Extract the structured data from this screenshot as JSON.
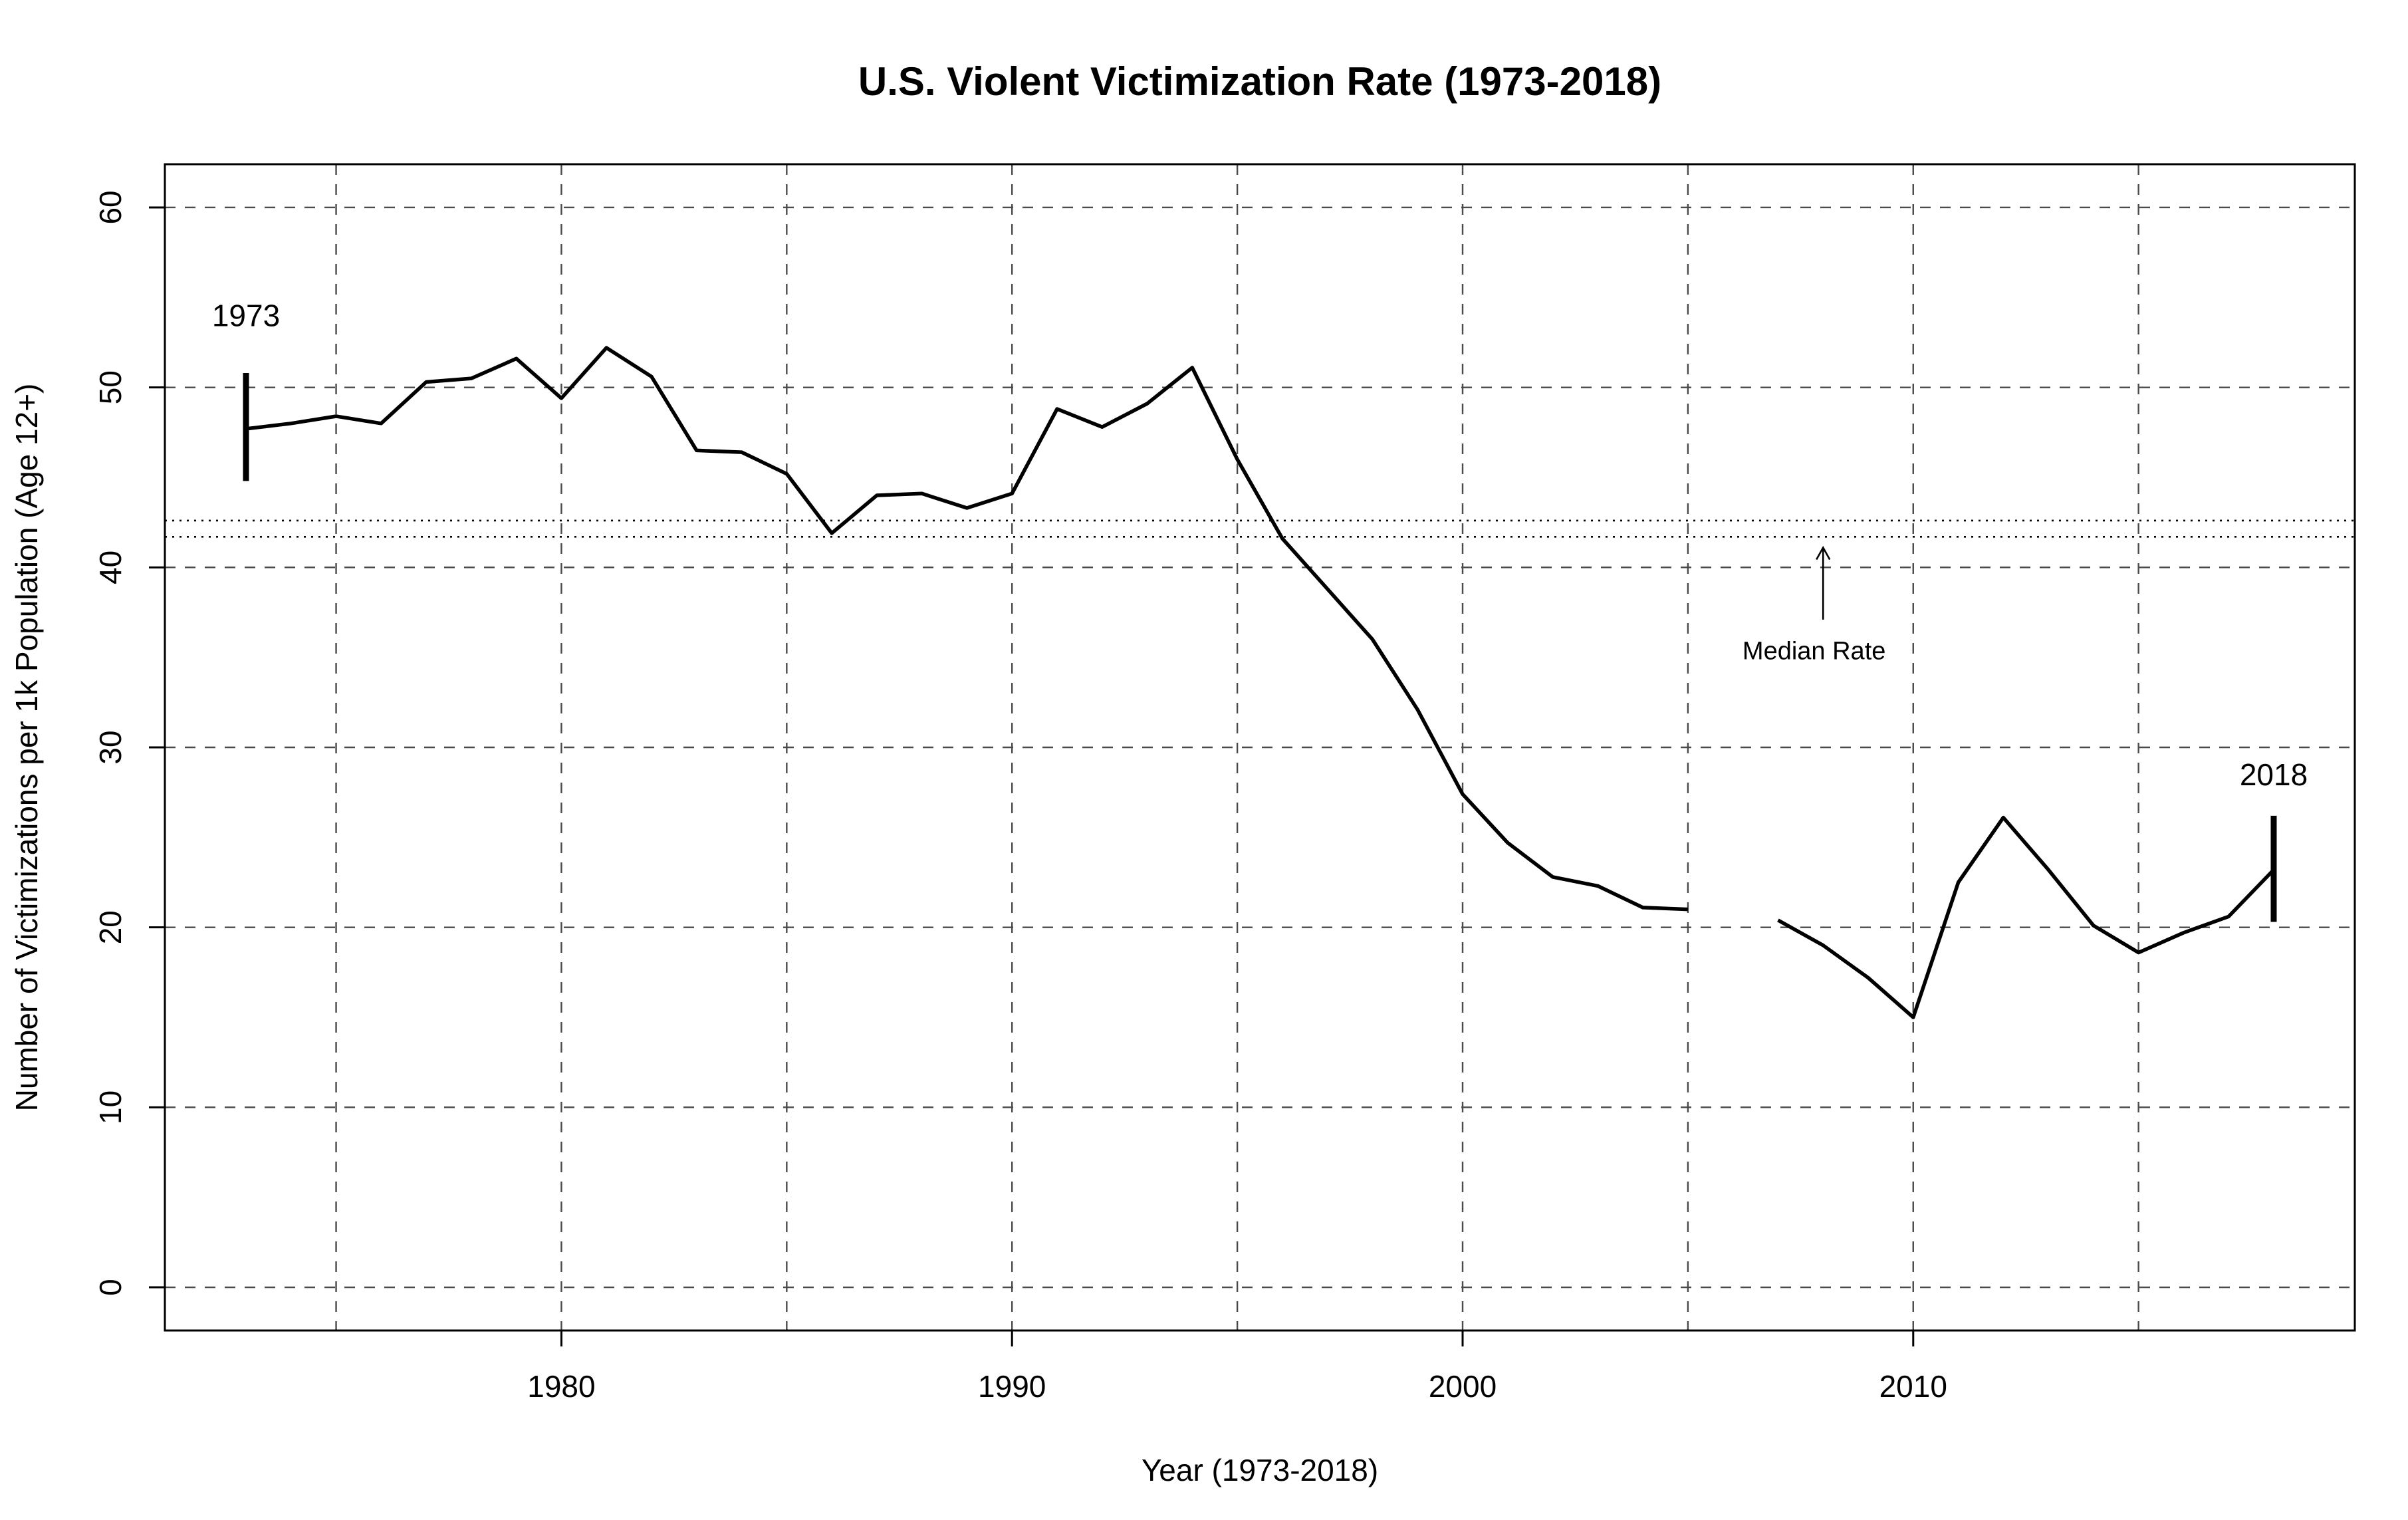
{
  "chart_data": {
    "type": "line",
    "title": "U.S. Violent Victimization Rate (1973-2018)",
    "xlabel": "Year (1973-2018)",
    "ylabel": "Number of Victimizations per 1k Population (Age 12+)",
    "xlim": [
      1971.2,
      2019.8
    ],
    "ylim": [
      -2.4,
      62.4
    ],
    "x_ticks": [
      1980,
      1990,
      2000,
      2010
    ],
    "x_tick_labels": [
      "1980",
      "1990",
      "2000",
      "2010"
    ],
    "y_ticks": [
      0,
      10,
      20,
      30,
      40,
      50,
      60
    ],
    "y_tick_labels": [
      "0",
      "10",
      "20",
      "30",
      "40",
      "50",
      "60"
    ],
    "grid": true,
    "grid_x": [
      1975,
      1980,
      1985,
      1990,
      1995,
      2000,
      2005,
      2010,
      2015
    ],
    "grid_y": [
      0,
      10,
      20,
      30,
      40,
      50,
      60
    ],
    "series": [
      {
        "x": [
          1973,
          1974,
          1975,
          1976,
          1977,
          1978,
          1979,
          1980,
          1981,
          1982,
          1983,
          1984,
          1985,
          1986,
          1987,
          1988,
          1989,
          1990,
          1991,
          1992,
          1993,
          1994,
          1995,
          1996,
          1997,
          1998,
          1999,
          2000,
          2001,
          2002,
          2003,
          2004,
          2005,
          2006,
          2007,
          2008,
          2009,
          2010,
          2011,
          2012,
          2013,
          2014,
          2015,
          2016,
          2017,
          2018
        ],
        "values": [
          47.7,
          48.0,
          48.4,
          48.0,
          50.3,
          50.5,
          51.6,
          49.4,
          52.2,
          50.6,
          46.5,
          46.4,
          45.2,
          41.9,
          44.0,
          44.1,
          43.3,
          44.1,
          48.8,
          47.8,
          49.1,
          51.1,
          46.0,
          41.6,
          38.8,
          36.0,
          32.1,
          27.4,
          24.7,
          22.8,
          22.3,
          21.1,
          21.0,
          null,
          20.4,
          19.0,
          17.2,
          15.0,
          22.5,
          26.1,
          23.2,
          20.1,
          18.6,
          19.7,
          20.6,
          23.2
        ]
      }
    ],
    "median_lines": [
      41.7,
      42.6
    ],
    "annotations": [
      {
        "label": "1973",
        "x": 1973,
        "text_x": 1973,
        "text_y": 53.4,
        "bar_low": 44.8,
        "bar_high": 50.8
      },
      {
        "label": "2018",
        "x": 2018,
        "text_x": 2018,
        "text_y": 27.9,
        "bar_low": 20.3,
        "bar_high": 26.2
      },
      {
        "label": "Median Rate",
        "text_x": 2007.8,
        "text_y": 34.9,
        "arrow_x": 2008,
        "arrow_from": 37.1,
        "arrow_to": 41.1
      }
    ],
    "colors": {
      "line": "#000000",
      "grid": "#4a4a4a",
      "background": "#ffffff"
    }
  }
}
